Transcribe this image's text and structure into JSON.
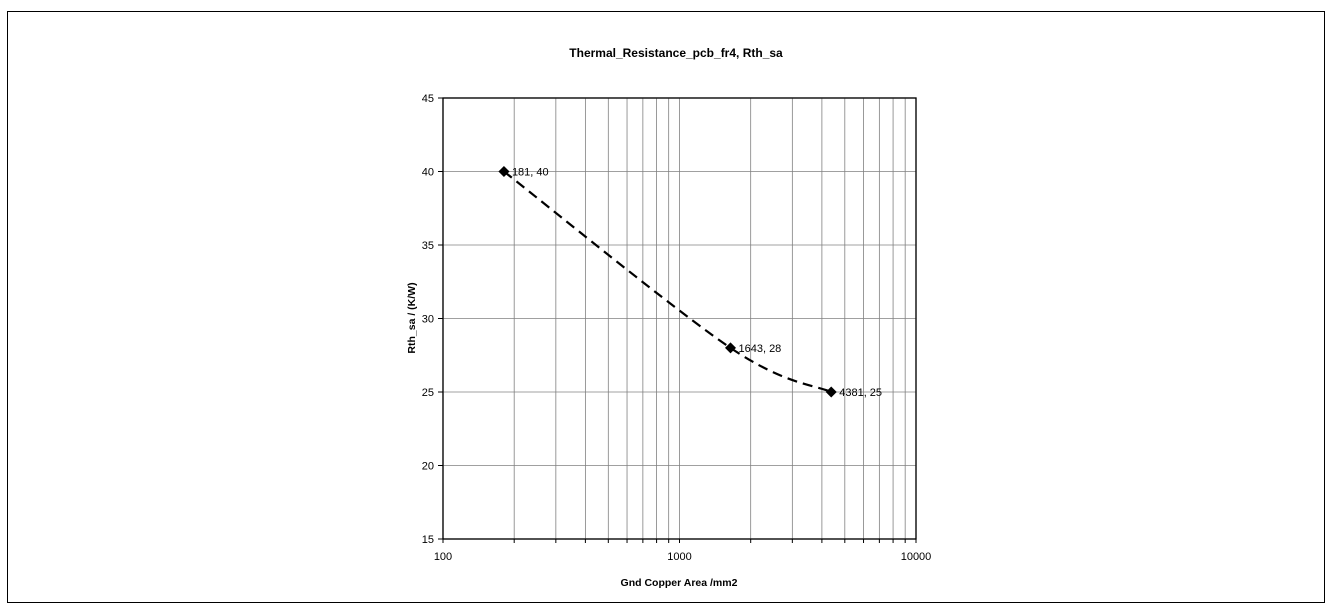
{
  "chart_data": {
    "type": "line",
    "title": "Thermal_Resistance_pcb_fr4, Rth_sa",
    "xlabel": "Gnd Copper Area /mm2",
    "ylabel": "Rth_sa / (K/W)",
    "x_scale": "log",
    "xlim": [
      100,
      10000
    ],
    "ylim": [
      15,
      45
    ],
    "x_tick_labels": [
      "100",
      "1000",
      "10000"
    ],
    "x_tick_values": [
      100,
      1000,
      10000
    ],
    "y_tick_labels": [
      "15",
      "20",
      "25",
      "30",
      "35",
      "40",
      "45"
    ],
    "y_tick_values": [
      15,
      20,
      25,
      30,
      35,
      40,
      45
    ],
    "grid": true,
    "series": [
      {
        "x": [
          181,
          1643,
          4381
        ],
        "y": [
          40,
          28,
          25
        ],
        "data_labels": [
          "181, 40",
          "1643, 28",
          "4381, 25"
        ],
        "line_style": "dashed",
        "marker": "diamond",
        "color": "#000000"
      }
    ]
  }
}
